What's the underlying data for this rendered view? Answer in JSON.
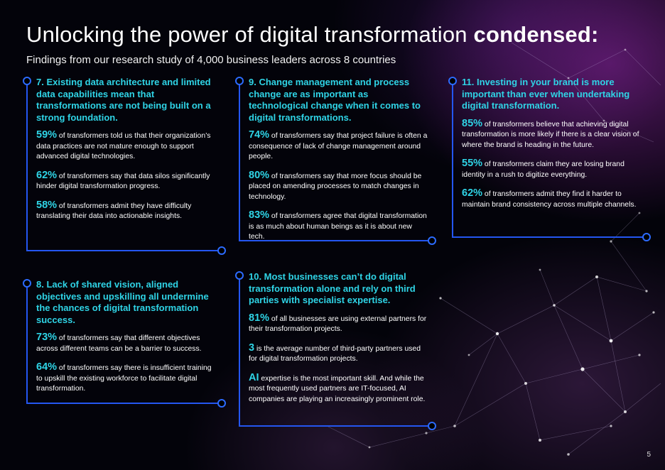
{
  "page": {
    "title_light": "Unlocking the power of digital transformation",
    "title_bold": "condensed:",
    "subtitle": "Findings from our research study of 4,000 business leaders across 8 countries",
    "page_number": "5"
  },
  "colors": {
    "accent": "#2fd4e6",
    "line": "#2456f0",
    "background": "#000000"
  },
  "sections": {
    "s7": {
      "heading": "7. Existing data architecture and limited data capabilities mean that transformations are not being built on a strong foundation.",
      "stats": [
        {
          "value": "59%",
          "text": "of transformers told us that their organization’s data practices are not mature enough to support advanced digital technologies."
        },
        {
          "value": "62%",
          "text": "of transformers say that data silos significantly hinder digital transformation progress."
        },
        {
          "value": "58%",
          "text": "of transformers admit they have difficulty translating their data into actionable insights."
        }
      ]
    },
    "s8": {
      "heading": "8. Lack of shared vision, aligned objectives and upskilling all undermine the chances of digital transformation success.",
      "stats": [
        {
          "value": "73%",
          "text": "of transformers say that different objectives across different teams can be a barrier to success."
        },
        {
          "value": "64%",
          "text": "of transformers say there is insufficient training to upskill the existing workforce to facilitate digital transformation."
        }
      ]
    },
    "s9": {
      "heading": "9. Change management and process change are as important as technological change when it comes to digital transformations.",
      "stats": [
        {
          "value": "74%",
          "text": "of transformers say that project failure is often a consequence of lack of change management around people."
        },
        {
          "value": "80%",
          "text": "of transformers say that more focus should be placed on amending processes to match changes in technology."
        },
        {
          "value": "83%",
          "text": "of transformers agree that digital transformation is as much about human beings as it is about new tech."
        }
      ]
    },
    "s10": {
      "heading": "10. Most businesses can’t do digital transformation alone and rely on third parties with specialist expertise.",
      "stats": [
        {
          "value": "81%",
          "text": "of all businesses are using external partners for their transformation projects."
        },
        {
          "value": "3",
          "text": "is the average number of third-party partners used for digital transformation projects."
        },
        {
          "value": "AI",
          "text": "expertise is the most important skill. And while the most frequently used partners are IT-focused, AI companies are playing an increasingly prominent role."
        }
      ]
    },
    "s11": {
      "heading": "11. Investing in your brand is more important than ever when undertaking digital transformation.",
      "stats": [
        {
          "value": "85%",
          "text": "of transformers believe that achieving digital transformation is more likely if there is a clear vision of where the brand is heading in the future."
        },
        {
          "value": "55%",
          "text": "of transformers claim they are losing brand identity in a rush to digitize everything."
        },
        {
          "value": "62%",
          "text": "of transformers admit they find it harder to maintain brand consistency across multiple channels."
        }
      ]
    }
  }
}
